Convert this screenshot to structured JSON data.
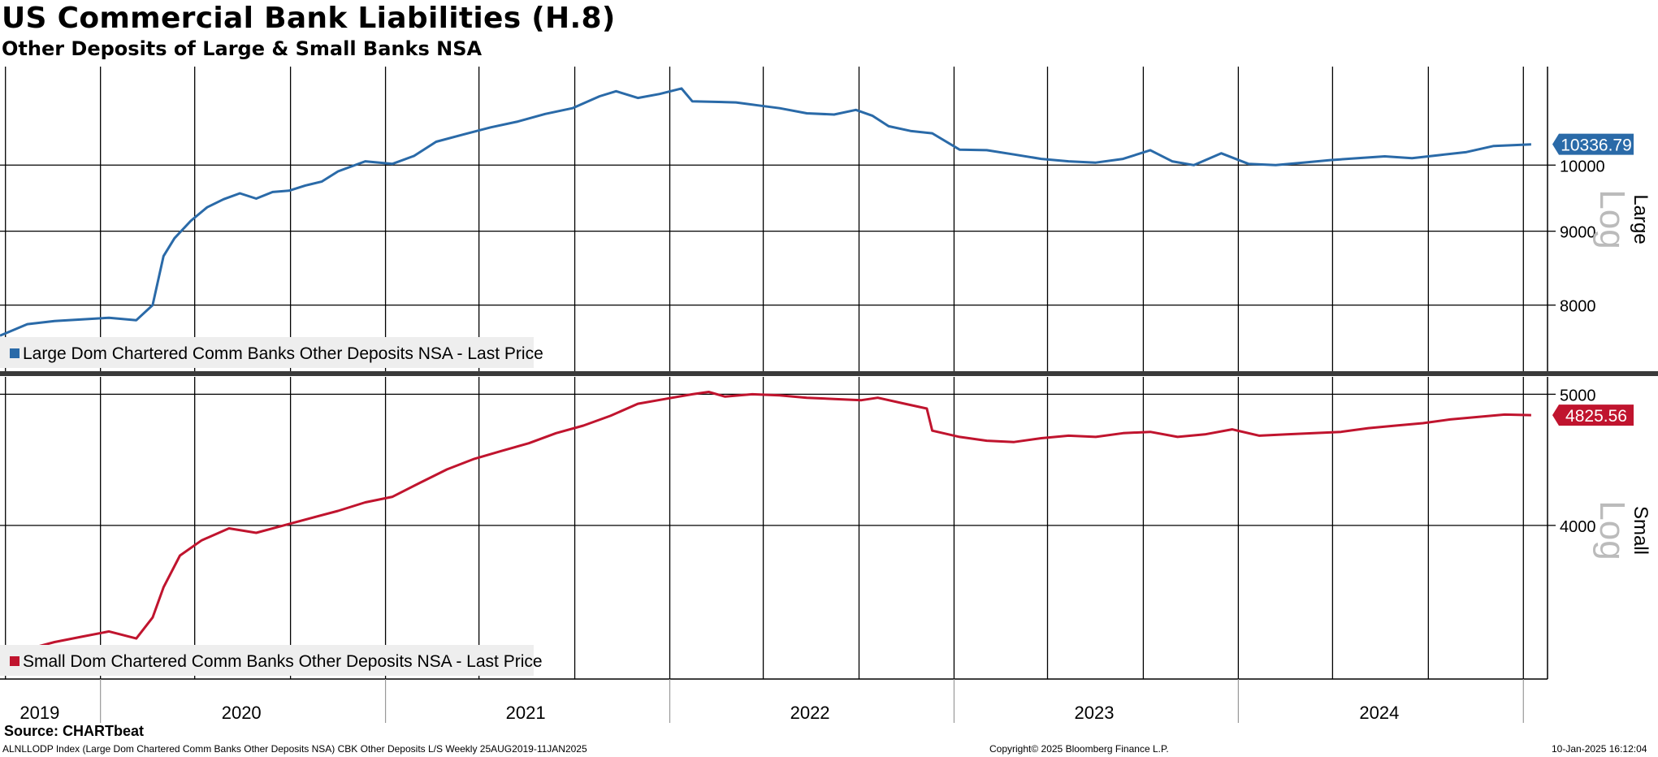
{
  "header": {
    "title": "US Commercial Bank Liabilities (H.8)",
    "subtitle": "Other Deposits of Large & Small Banks NSA"
  },
  "footer": {
    "source": "Source: CHARTbeat",
    "info": "ALNLLODP Index (Large Dom Chartered Comm Banks Other Deposits NSA) CBK Other Deposits L/S  Weekly 25AUG2019-11JAN2025",
    "copyright": "Copyright© 2025 Bloomberg Finance L.P.",
    "timestamp": "10-Jan-2025 16:12:04"
  },
  "colors": {
    "large": "#2a6aa8",
    "small": "#c0142e",
    "grid": "#000000",
    "legend_bg": "#eeeeee"
  },
  "chart_data": [
    {
      "type": "line",
      "panel_label": "Large",
      "scale_label": "Log",
      "log_scale": true,
      "legend": "Large Dom Chartered Comm Banks Other Deposits NSA - Last Price",
      "last_value_label": "10336.79",
      "y_ticks": [
        8000,
        9000,
        10000
      ],
      "y_range": [
        7200,
        11700
      ],
      "series": [
        {
          "name": "Large Dom Chartered Comm Banks Other Deposits NSA - Last Price",
          "points": [
            [
              "2019-08-25",
              7620
            ],
            [
              "2019-09-29",
              7760
            ],
            [
              "2019-11-03",
              7800
            ],
            [
              "2019-12-08",
              7820
            ],
            [
              "2020-01-12",
              7840
            ],
            [
              "2020-02-16",
              7810
            ],
            [
              "2020-03-08",
              8000
            ],
            [
              "2020-03-22",
              8650
            ],
            [
              "2020-04-05",
              8900
            ],
            [
              "2020-04-26",
              9150
            ],
            [
              "2020-05-17",
              9350
            ],
            [
              "2020-06-07",
              9470
            ],
            [
              "2020-06-28",
              9560
            ],
            [
              "2020-07-19",
              9480
            ],
            [
              "2020-08-09",
              9580
            ],
            [
              "2020-08-30",
              9600
            ],
            [
              "2020-09-20",
              9680
            ],
            [
              "2020-10-11",
              9740
            ],
            [
              "2020-11-01",
              9900
            ],
            [
              "2020-12-06",
              10060
            ],
            [
              "2021-01-10",
              10020
            ],
            [
              "2021-02-07",
              10150
            ],
            [
              "2021-03-07",
              10380
            ],
            [
              "2021-04-11",
              10500
            ],
            [
              "2021-05-16",
              10620
            ],
            [
              "2021-06-20",
              10720
            ],
            [
              "2021-07-25",
              10850
            ],
            [
              "2021-08-29",
              10950
            ],
            [
              "2021-10-03",
              11160
            ],
            [
              "2021-10-24",
              11250
            ],
            [
              "2021-11-21",
              11130
            ],
            [
              "2021-12-19",
              11200
            ],
            [
              "2022-01-16",
              11300
            ],
            [
              "2022-01-30",
              11070
            ],
            [
              "2022-02-27",
              11060
            ],
            [
              "2022-03-27",
              11050
            ],
            [
              "2022-04-24",
              11000
            ],
            [
              "2022-05-22",
              10950
            ],
            [
              "2022-06-26",
              10860
            ],
            [
              "2022-07-31",
              10840
            ],
            [
              "2022-08-28",
              10920
            ],
            [
              "2022-09-18",
              10820
            ],
            [
              "2022-10-09",
              10640
            ],
            [
              "2022-11-06",
              10560
            ],
            [
              "2022-12-04",
              10520
            ],
            [
              "2023-01-08",
              10250
            ],
            [
              "2023-02-12",
              10240
            ],
            [
              "2023-03-19",
              10170
            ],
            [
              "2023-04-23",
              10100
            ],
            [
              "2023-05-28",
              10060
            ],
            [
              "2023-07-02",
              10040
            ],
            [
              "2023-08-06",
              10100
            ],
            [
              "2023-09-10",
              10240
            ],
            [
              "2023-10-08",
              10060
            ],
            [
              "2023-11-05",
              10000
            ],
            [
              "2023-12-10",
              10190
            ],
            [
              "2024-01-14",
              10020
            ],
            [
              "2024-02-18",
              10000
            ],
            [
              "2024-03-24",
              10040
            ],
            [
              "2024-04-28",
              10080
            ],
            [
              "2024-06-02",
              10110
            ],
            [
              "2024-07-07",
              10140
            ],
            [
              "2024-08-11",
              10110
            ],
            [
              "2024-09-15",
              10160
            ],
            [
              "2024-10-20",
              10210
            ],
            [
              "2024-11-24",
              10310
            ],
            [
              "2025-01-11",
              10336.79
            ]
          ]
        }
      ]
    },
    {
      "type": "line",
      "panel_label": "Small",
      "scale_label": "Log",
      "log_scale": true,
      "legend": "Small Dom Chartered Comm Banks Other Deposits NSA - Last Price",
      "last_value_label": "4825.56",
      "y_ticks": [
        4000,
        5000
      ],
      "y_range": [
        3080,
        5150
      ],
      "series": [
        {
          "name": "Small Dom Chartered Comm Banks Other Deposits NSA - Last Price",
          "points": [
            [
              "2019-08-25",
              3200
            ],
            [
              "2019-09-29",
              3240
            ],
            [
              "2019-11-03",
              3280
            ],
            [
              "2019-12-08",
              3310
            ],
            [
              "2020-01-12",
              3340
            ],
            [
              "2020-02-16",
              3300
            ],
            [
              "2020-03-08",
              3420
            ],
            [
              "2020-03-22",
              3600
            ],
            [
              "2020-04-12",
              3800
            ],
            [
              "2020-05-10",
              3900
            ],
            [
              "2020-06-14",
              3980
            ],
            [
              "2020-07-19",
              3950
            ],
            [
              "2020-08-23",
              4000
            ],
            [
              "2020-09-27",
              4050
            ],
            [
              "2020-11-01",
              4100
            ],
            [
              "2020-12-06",
              4160
            ],
            [
              "2021-01-10",
              4200
            ],
            [
              "2021-02-14",
              4300
            ],
            [
              "2021-03-21",
              4400
            ],
            [
              "2021-04-25",
              4480
            ],
            [
              "2021-05-30",
              4540
            ],
            [
              "2021-07-04",
              4600
            ],
            [
              "2021-08-08",
              4680
            ],
            [
              "2021-09-12",
              4740
            ],
            [
              "2021-10-17",
              4820
            ],
            [
              "2021-11-21",
              4920
            ],
            [
              "2021-12-26",
              4960
            ],
            [
              "2022-01-30",
              5000
            ],
            [
              "2022-02-20",
              5020
            ],
            [
              "2022-03-13",
              4980
            ],
            [
              "2022-04-17",
              5000
            ],
            [
              "2022-05-22",
              4990
            ],
            [
              "2022-06-26",
              4970
            ],
            [
              "2022-07-31",
              4960
            ],
            [
              "2022-09-04",
              4950
            ],
            [
              "2022-09-25",
              4970
            ],
            [
              "2022-10-30",
              4920
            ],
            [
              "2022-11-27",
              4880
            ],
            [
              "2022-12-04",
              4700
            ],
            [
              "2023-01-08",
              4650
            ],
            [
              "2023-02-12",
              4620
            ],
            [
              "2023-03-19",
              4610
            ],
            [
              "2023-04-23",
              4640
            ],
            [
              "2023-05-28",
              4660
            ],
            [
              "2023-07-02",
              4650
            ],
            [
              "2023-08-06",
              4680
            ],
            [
              "2023-09-10",
              4690
            ],
            [
              "2023-10-15",
              4650
            ],
            [
              "2023-11-19",
              4670
            ],
            [
              "2023-12-24",
              4710
            ],
            [
              "2024-01-28",
              4660
            ],
            [
              "2024-03-03",
              4670
            ],
            [
              "2024-04-07",
              4680
            ],
            [
              "2024-05-12",
              4690
            ],
            [
              "2024-06-16",
              4720
            ],
            [
              "2024-07-21",
              4740
            ],
            [
              "2024-08-25",
              4760
            ],
            [
              "2024-09-29",
              4790
            ],
            [
              "2024-11-03",
              4810
            ],
            [
              "2024-12-08",
              4830
            ],
            [
              "2025-01-11",
              4825.56
            ]
          ]
        }
      ]
    }
  ],
  "x_axis": {
    "range": [
      "2019-08-25",
      "2025-02-01"
    ],
    "labels": [
      {
        "text": "2019",
        "date": "2019-10-15"
      },
      {
        "text": "2020",
        "date": "2020-06-30"
      },
      {
        "text": "2021",
        "date": "2021-06-30"
      },
      {
        "text": "2022",
        "date": "2022-06-30"
      },
      {
        "text": "2023",
        "date": "2023-06-30"
      },
      {
        "text": "2024",
        "date": "2024-06-30"
      }
    ],
    "gridlines": [
      "2019-09-01",
      "2020-01-01",
      "2020-05-01",
      "2020-09-01",
      "2021-01-01",
      "2021-05-01",
      "2021-09-01",
      "2022-01-01",
      "2022-05-01",
      "2022-09-01",
      "2023-01-01",
      "2023-05-01",
      "2023-09-01",
      "2024-01-01",
      "2024-05-01",
      "2024-09-01",
      "2025-01-01"
    ],
    "year_separators": [
      "2020-01-01",
      "2021-01-01",
      "2022-01-01",
      "2023-01-01",
      "2024-01-01",
      "2025-01-01"
    ]
  }
}
